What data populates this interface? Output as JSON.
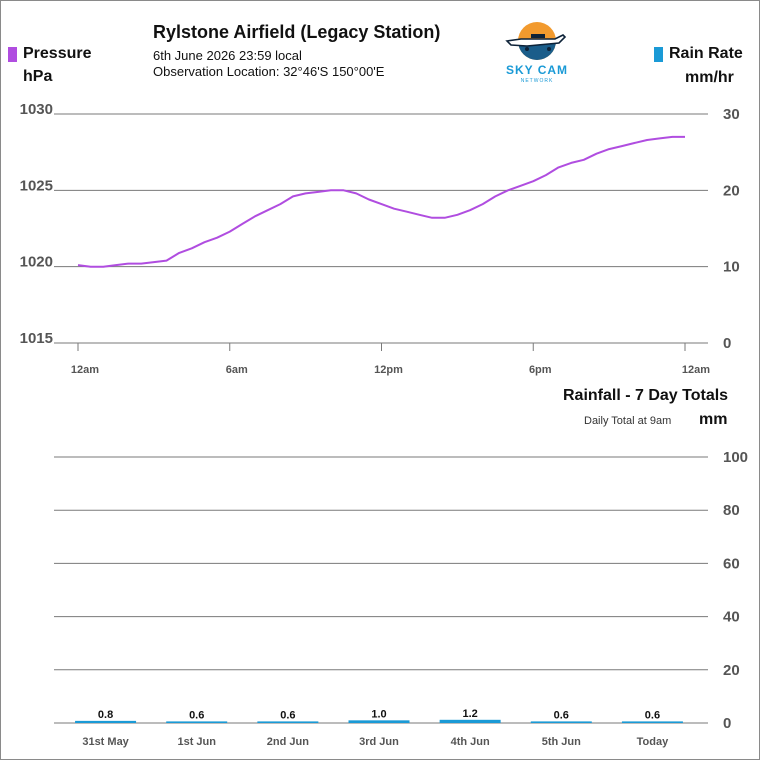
{
  "station": {
    "title": "Rylstone Airfield (Legacy Station)",
    "datetime": "6th June 2026  23:59 local",
    "location": "Observation Location: 32°46'S 150°00'E"
  },
  "logo": {
    "text": "SKY CAM",
    "subtext": "NETWORK"
  },
  "legend": {
    "pressure_label": "Pressure",
    "pressure_unit": "hPa",
    "pressure_color": "#b04de0",
    "rain_label": "Rain Rate",
    "rain_unit": "mm/hr",
    "rain_color": "#1a9ad6"
  },
  "chart_data": [
    {
      "type": "line",
      "title": "",
      "x_tick_labels": [
        "12am",
        "6am",
        "12pm",
        "6pm",
        "12am"
      ],
      "x_ticks_hours": [
        0,
        6,
        12,
        18,
        24
      ],
      "y_left_ticks": [
        "1030",
        "1025",
        "1020",
        "1015"
      ],
      "y_left_values": [
        1030,
        1025,
        1020,
        1015
      ],
      "y_right_ticks": [
        "30",
        "20",
        "10",
        "0"
      ],
      "y_right_values": [
        30,
        20,
        10,
        0
      ],
      "ylim_left": [
        1015,
        1030
      ],
      "ylim_right": [
        0,
        30
      ],
      "grid": true,
      "series": [
        {
          "name": "Pressure",
          "color": "#b04de0",
          "x_hours": [
            0,
            0.5,
            1,
            1.5,
            2,
            2.5,
            3,
            3.5,
            4,
            4.5,
            5,
            5.5,
            6,
            6.5,
            7,
            7.5,
            8,
            8.5,
            9,
            9.5,
            10,
            10.5,
            11,
            11.5,
            12,
            12.5,
            13,
            13.5,
            14,
            14.5,
            15,
            15.5,
            16,
            16.5,
            17,
            17.5,
            18,
            18.5,
            19,
            19.5,
            20,
            20.5,
            21,
            21.5,
            22,
            22.5,
            23,
            23.5,
            24
          ],
          "values": [
            1020.1,
            1020.0,
            1020.0,
            1020.1,
            1020.2,
            1020.2,
            1020.3,
            1020.4,
            1020.9,
            1021.2,
            1021.6,
            1021.9,
            1022.3,
            1022.8,
            1023.3,
            1023.7,
            1024.1,
            1024.6,
            1024.8,
            1024.9,
            1025.0,
            1025.0,
            1024.8,
            1024.4,
            1024.1,
            1023.8,
            1023.6,
            1023.4,
            1023.2,
            1023.2,
            1023.4,
            1023.7,
            1024.1,
            1024.6,
            1025.0,
            1025.3,
            1025.6,
            1026.0,
            1026.5,
            1026.8,
            1027.0,
            1027.4,
            1027.7,
            1027.9,
            1028.1,
            1028.3,
            1028.4,
            1028.5,
            1028.5
          ]
        }
      ]
    },
    {
      "type": "bar",
      "title": "Rainfall - 7 Day Totals",
      "subtitle": "Daily Total at 9am",
      "ylabel": "mm",
      "ylim": [
        0,
        100
      ],
      "y_ticks": [
        "100",
        "80",
        "60",
        "40",
        "20",
        "0"
      ],
      "y_tick_values": [
        100,
        80,
        60,
        40,
        20,
        0
      ],
      "grid": true,
      "categories": [
        "31st May",
        "1st Jun",
        "2nd Jun",
        "3rd Jun",
        "4th Jun",
        "5th Jun",
        "Today"
      ],
      "values": [
        0.8,
        0.6,
        0.6,
        1.0,
        1.2,
        0.6,
        0.6
      ],
      "value_labels": [
        "0.8",
        "0.6",
        "0.6",
        "1.0",
        "1.2",
        "0.6",
        "0.6"
      ],
      "color": "#1a9ad6"
    }
  ]
}
